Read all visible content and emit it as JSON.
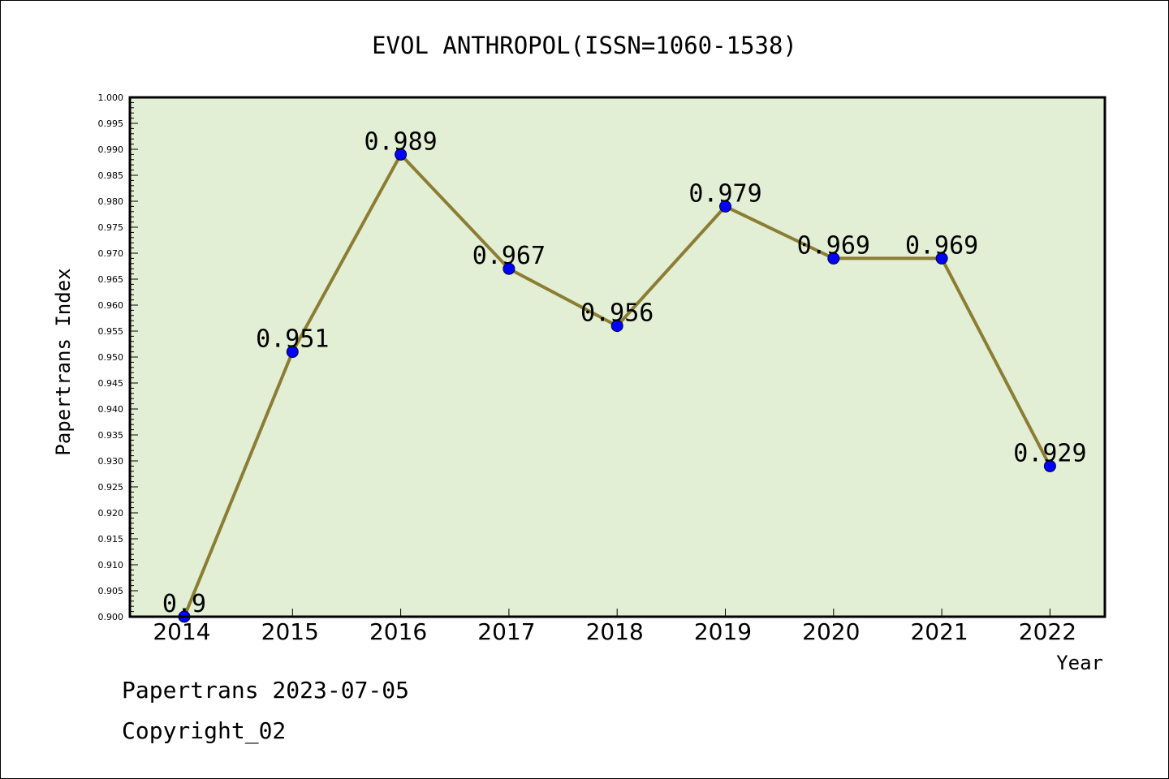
{
  "chart_data": {
    "type": "line",
    "title": "EVOL ANTHROPOL(ISSN=1060-1538)",
    "xlabel": "Year",
    "ylabel": "Papertrans Index",
    "categories": [
      "2014",
      "2015",
      "2016",
      "2017",
      "2018",
      "2019",
      "2020",
      "2021",
      "2022"
    ],
    "series": [
      {
        "values": [
          0.9,
          0.951,
          0.989,
          0.967,
          0.956,
          0.979,
          0.969,
          0.969,
          0.929
        ],
        "data_labels": [
          "0.9",
          "0.951",
          "0.989",
          "0.967",
          "0.956",
          "0.979",
          "0.969",
          "0.969",
          "0.929"
        ]
      }
    ],
    "ylim": [
      0.9,
      1.0
    ],
    "y_ticks": [
      "0.900",
      "0.905",
      "0.910",
      "0.915",
      "0.920",
      "0.925",
      "0.930",
      "0.935",
      "0.940",
      "0.945",
      "0.950",
      "0.955",
      "0.960",
      "0.965",
      "0.970",
      "0.975",
      "0.980",
      "0.985",
      "0.990",
      "0.995",
      "1.000"
    ],
    "grid": false,
    "legend": "none",
    "colors": {
      "plot_background": "#e2efd4",
      "line": "#8b7d34",
      "marker": "#0000ff"
    }
  },
  "footer": {
    "source": "Papertrans 2023-07-05",
    "copyright": "Copyright_02"
  }
}
